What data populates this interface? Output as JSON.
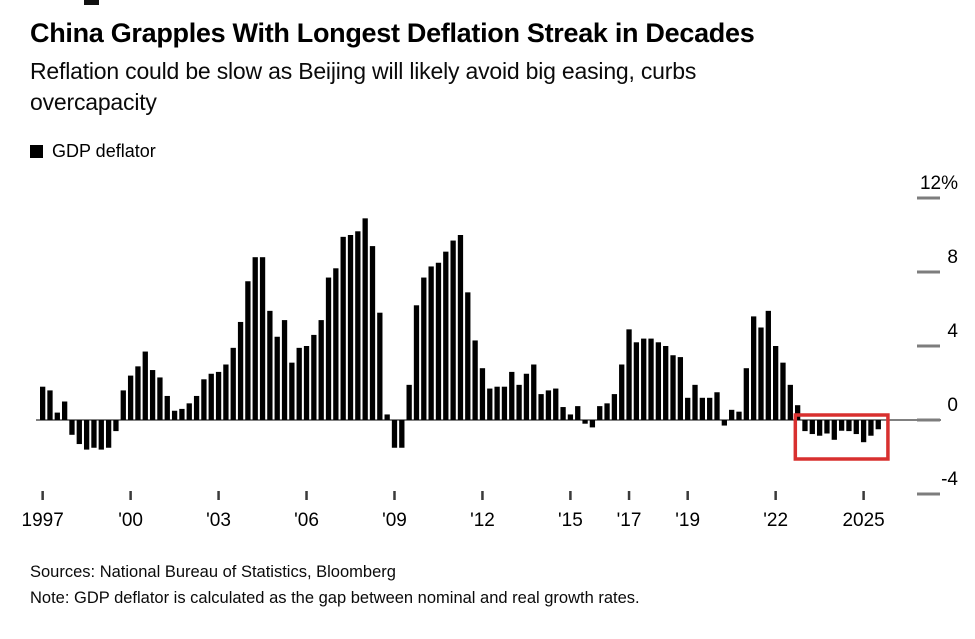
{
  "header": {
    "title": "China Grapples With Longest Deflation Streak in Decades",
    "subtitle": "Reflation could be slow as Beijing will likely avoid big easing, curbs\novercapacity"
  },
  "legend": {
    "label": "GDP deflator",
    "swatch_color": "#000000"
  },
  "chart_data": {
    "type": "bar",
    "series_name": "GDP deflator",
    "unit": "%",
    "frequency": "quarterly",
    "start": "1997Q1",
    "end": "2025Q3",
    "values": [
      1.8,
      1.6,
      0.4,
      1.0,
      -0.8,
      -1.3,
      -1.6,
      -1.5,
      -1.6,
      -1.5,
      -0.6,
      1.6,
      2.4,
      2.9,
      3.7,
      2.7,
      2.3,
      1.3,
      0.5,
      0.6,
      0.9,
      1.3,
      2.2,
      2.5,
      2.6,
      3.0,
      3.9,
      5.3,
      7.5,
      8.8,
      8.8,
      5.9,
      4.5,
      5.4,
      3.1,
      3.9,
      4.0,
      4.6,
      5.4,
      7.7,
      8.2,
      9.9,
      10.0,
      10.2,
      10.9,
      9.4,
      5.8,
      0.3,
      -1.5,
      -1.5,
      1.9,
      6.2,
      7.7,
      8.3,
      8.5,
      9.1,
      9.7,
      10.0,
      6.9,
      4.3,
      2.8,
      1.7,
      1.8,
      1.8,
      2.6,
      1.9,
      2.5,
      3.0,
      1.4,
      1.6,
      1.7,
      0.7,
      0.3,
      0.75,
      -0.2,
      -0.4,
      0.75,
      0.9,
      1.4,
      3.0,
      4.9,
      4.2,
      4.4,
      4.4,
      4.2,
      4.0,
      3.5,
      3.4,
      1.2,
      1.9,
      1.2,
      1.2,
      1.5,
      -0.3,
      0.55,
      0.45,
      2.8,
      5.6,
      5.0,
      5.9,
      4.0,
      3.1,
      1.9,
      0.8,
      -0.6,
      -0.76,
      -0.85,
      -0.73,
      -1.07,
      -0.58,
      -0.6,
      -0.76,
      -1.2,
      -0.85,
      -0.5
    ],
    "y_ticks": [
      {
        "value": 12,
        "label": "12%"
      },
      {
        "value": 8,
        "label": "8"
      },
      {
        "value": 4,
        "label": "4"
      },
      {
        "value": 0,
        "label": "0"
      },
      {
        "value": -4,
        "label": "-4"
      }
    ],
    "x_ticks": [
      {
        "label": "1997",
        "index": 0
      },
      {
        "label": "'00",
        "index": 12
      },
      {
        "label": "'03",
        "index": 24
      },
      {
        "label": "'06",
        "index": 36
      },
      {
        "label": "'09",
        "index": 48
      },
      {
        "label": "'12",
        "index": 60
      },
      {
        "label": "'15",
        "index": 72
      },
      {
        "label": "'17",
        "index": 80
      },
      {
        "label": "'19",
        "index": 88
      },
      {
        "label": "'22",
        "index": 100
      },
      {
        "label": "2025",
        "index": 112
      }
    ],
    "ylim": [
      -4.5,
      12.5
    ],
    "grid": false,
    "legend_position": "top-left",
    "bar_color": "#000000",
    "zero_line_color": "#808080",
    "tick_dash_color": "#7d7d7d",
    "axis_text_color": "#000000",
    "highlight": {
      "start_index": 104,
      "end_index": 114,
      "color": "#d8302f",
      "meaning": "recent deflation streak"
    }
  },
  "footer": {
    "sources": "Sources: National Bureau of Statistics, Bloomberg",
    "note": "Note: GDP deflator is calculated as the gap between nominal and real growth rates."
  }
}
